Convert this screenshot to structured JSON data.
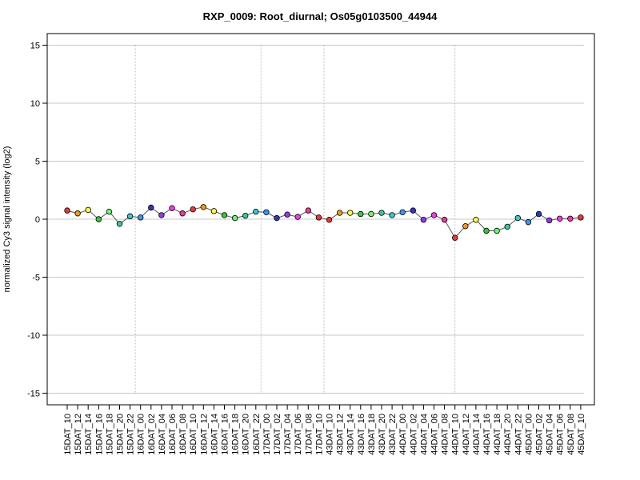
{
  "chart_data": {
    "type": "line",
    "title": "RXP_0009: Root_diurnal; Os05g0103500_44944",
    "xlabel": "",
    "ylabel": "normalized Cy3 signal intensity (log2)",
    "ylim": [
      -16,
      16
    ],
    "yticks": [
      15,
      10,
      5,
      0,
      -5,
      -10,
      -15
    ],
    "grid": "horizontal",
    "separators_after": [
      "15DAT_22",
      "16DAT_22",
      "17DAT_10"
    ],
    "separator_at_category": "44DAT_10",
    "categories": [
      "15DAT_10",
      "15DAT_12",
      "15DAT_14",
      "15DAT_16",
      "15DAT_18",
      "15DAT_20",
      "15DAT_22",
      "16DAT_00",
      "16DAT_02",
      "16DAT_04",
      "16DAT_06",
      "16DAT_08",
      "16DAT_10",
      "16DAT_12",
      "16DAT_14",
      "16DAT_16",
      "16DAT_18",
      "16DAT_20",
      "16DAT_22",
      "17DAT_00",
      "17DAT_02",
      "17DAT_04",
      "17DAT_06",
      "17DAT_08",
      "17DAT_10",
      "43DAT_10",
      "43DAT_12",
      "43DAT_14",
      "43DAT_16",
      "43DAT_18",
      "43DAT_20",
      "43DAT_22",
      "44DAT_00",
      "44DAT_02",
      "44DAT_04",
      "44DAT_06",
      "44DAT_08",
      "44DAT_10",
      "44DAT_12",
      "44DAT_14",
      "44DAT_16",
      "44DAT_18",
      "44DAT_20",
      "44DAT_22",
      "45DAT_00",
      "45DAT_02",
      "45DAT_04",
      "45DAT_06",
      "45DAT_08",
      "45DAT_10"
    ],
    "series": [
      {
        "values": [
          0.75,
          0.5,
          0.8,
          0.0,
          0.65,
          -0.4,
          0.25,
          0.15,
          1.0,
          0.35,
          0.95,
          0.5,
          0.85,
          1.05,
          0.7,
          0.35,
          0.1,
          0.3,
          0.65,
          0.6,
          0.1,
          0.4,
          0.2,
          0.75,
          0.15,
          -0.05,
          0.55,
          0.55,
          0.45,
          0.45,
          0.55,
          0.35,
          0.6,
          0.75,
          -0.05,
          0.35,
          -0.05,
          -1.6,
          -0.6,
          -0.05,
          -1.0,
          -1.0,
          -0.65,
          0.1,
          -0.25,
          0.45,
          -0.1,
          0.05,
          0.05,
          0.15
        ],
        "colors": [
          "#ff3030",
          "#ff9900",
          "#ffff33",
          "#33cc33",
          "#66ff66",
          "#33cc99",
          "#33cccc",
          "#3399ff",
          "#3333cc",
          "#9933ff",
          "#ff33ff",
          "#ff3399",
          "#ff3030",
          "#ff9900",
          "#ffff33",
          "#33cc33",
          "#66ff66",
          "#33cc99",
          "#33cccc",
          "#3399ff",
          "#3333cc",
          "#9933ff",
          "#ff33ff",
          "#ff3399",
          "#ff3030",
          "#ff3030",
          "#ff9900",
          "#ffff33",
          "#33cc33",
          "#66ff66",
          "#33cc99",
          "#33cccc",
          "#3399ff",
          "#3333cc",
          "#9933ff",
          "#ff33ff",
          "#ff3399",
          "#ff3030",
          "#ff9900",
          "#ffff33",
          "#33cc33",
          "#66ff66",
          "#33cc99",
          "#33cccc",
          "#3399ff",
          "#3333cc",
          "#9933ff",
          "#ff33ff",
          "#ff3399",
          "#ff3030"
        ]
      }
    ]
  }
}
